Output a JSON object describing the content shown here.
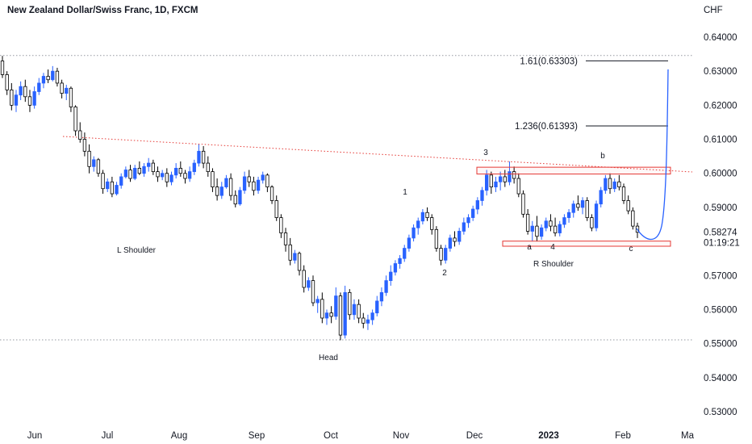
{
  "chart_data": {
    "type": "candlestick",
    "title": "New Zealand Dollar/Swiss Franc, 1D, FXCM",
    "currency": "CHF",
    "ylim": [
      0.525,
      0.6505
    ],
    "yticks": [
      "0.64000",
      "0.63000",
      "0.62000",
      "0.61000",
      "0.60000",
      "0.59000",
      "0.57000",
      "0.56000",
      "0.55000",
      "0.54000",
      "0.53000"
    ],
    "ytick_values": [
      0.64,
      0.63,
      0.62,
      0.61,
      0.6,
      0.59,
      0.57,
      0.56,
      0.55,
      0.54,
      0.53
    ],
    "current_price": "0.58274",
    "current_price_value": 0.58274,
    "countdown": "01:19:21",
    "xtick_labels": [
      "Jun",
      "Jul",
      "Aug",
      "Sep",
      "Oct",
      "Nov",
      "Dec",
      "2023",
      "Feb",
      "Ma"
    ],
    "colors": {
      "up": "#2962ff",
      "down": "#000000",
      "support": "#e53935",
      "trend": "#e53935",
      "projection": "#2962ff",
      "dotted": "#9598a1"
    },
    "candles_ohlc": [
      [
        0.633,
        0.6345,
        0.628,
        0.629
      ],
      [
        0.629,
        0.63,
        0.623,
        0.6245
      ],
      [
        0.6245,
        0.6265,
        0.6185,
        0.62
      ],
      [
        0.62,
        0.6245,
        0.618,
        0.623
      ],
      [
        0.623,
        0.627,
        0.6215,
        0.6255
      ],
      [
        0.6255,
        0.6275,
        0.621,
        0.6225
      ],
      [
        0.6225,
        0.6245,
        0.618,
        0.62
      ],
      [
        0.62,
        0.6255,
        0.619,
        0.624
      ],
      [
        0.624,
        0.628,
        0.623,
        0.6265
      ],
      [
        0.6265,
        0.6295,
        0.625,
        0.6285
      ],
      [
        0.6285,
        0.6305,
        0.6265,
        0.6275
      ],
      [
        0.6275,
        0.6315,
        0.627,
        0.63
      ],
      [
        0.63,
        0.631,
        0.6255,
        0.6265
      ],
      [
        0.6265,
        0.6275,
        0.622,
        0.6235
      ],
      [
        0.6235,
        0.626,
        0.6215,
        0.625
      ],
      [
        0.625,
        0.6255,
        0.618,
        0.6195
      ],
      [
        0.6195,
        0.62,
        0.611,
        0.6125
      ],
      [
        0.6125,
        0.615,
        0.609,
        0.61
      ],
      [
        0.61,
        0.612,
        0.605,
        0.6065
      ],
      [
        0.6065,
        0.6085,
        0.6,
        0.602
      ],
      [
        0.602,
        0.605,
        0.6005,
        0.604
      ],
      [
        0.604,
        0.6045,
        0.599,
        0.6
      ],
      [
        0.6,
        0.601,
        0.594,
        0.5955
      ],
      [
        0.5955,
        0.5985,
        0.5945,
        0.5975
      ],
      [
        0.5975,
        0.599,
        0.593,
        0.594
      ],
      [
        0.594,
        0.5975,
        0.5935,
        0.5965
      ],
      [
        0.5965,
        0.6,
        0.5955,
        0.599
      ],
      [
        0.599,
        0.602,
        0.5985,
        0.601
      ],
      [
        0.601,
        0.6025,
        0.5975,
        0.5985
      ],
      [
        0.5985,
        0.6025,
        0.598,
        0.6015
      ],
      [
        0.6015,
        0.6035,
        0.5995,
        0.6
      ],
      [
        0.6,
        0.603,
        0.599,
        0.602
      ],
      [
        0.602,
        0.6045,
        0.6005,
        0.603
      ],
      [
        0.603,
        0.604,
        0.5995,
        0.6005
      ],
      [
        0.6005,
        0.602,
        0.5975,
        0.599
      ],
      [
        0.599,
        0.601,
        0.598,
        0.6
      ],
      [
        0.6,
        0.6015,
        0.596,
        0.5975
      ],
      [
        0.5975,
        0.6005,
        0.5965,
        0.5995
      ],
      [
        0.5995,
        0.603,
        0.5985,
        0.6015
      ],
      [
        0.6015,
        0.6035,
        0.599,
        0.6
      ],
      [
        0.6,
        0.601,
        0.597,
        0.5985
      ],
      [
        0.5985,
        0.602,
        0.5975,
        0.6005
      ],
      [
        0.6005,
        0.604,
        0.5995,
        0.603
      ],
      [
        0.603,
        0.6085,
        0.602,
        0.6065
      ],
      [
        0.6065,
        0.608,
        0.6015,
        0.603
      ],
      [
        0.603,
        0.605,
        0.599,
        0.6005
      ],
      [
        0.6005,
        0.6015,
        0.5945,
        0.596
      ],
      [
        0.596,
        0.5985,
        0.592,
        0.5935
      ],
      [
        0.5935,
        0.5975,
        0.5925,
        0.596
      ],
      [
        0.596,
        0.5995,
        0.5955,
        0.5985
      ],
      [
        0.5985,
        0.6,
        0.592,
        0.5935
      ],
      [
        0.5935,
        0.595,
        0.59,
        0.591
      ],
      [
        0.591,
        0.596,
        0.5905,
        0.595
      ],
      [
        0.595,
        0.6005,
        0.594,
        0.599
      ],
      [
        0.599,
        0.601,
        0.596,
        0.5975
      ],
      [
        0.5975,
        0.599,
        0.5935,
        0.595
      ],
      [
        0.595,
        0.599,
        0.594,
        0.598
      ],
      [
        0.598,
        0.6005,
        0.597,
        0.5995
      ],
      [
        0.5995,
        0.6,
        0.5945,
        0.596
      ],
      [
        0.596,
        0.5965,
        0.591,
        0.592
      ],
      [
        0.592,
        0.5935,
        0.586,
        0.587
      ],
      [
        0.587,
        0.588,
        0.581,
        0.5825
      ],
      [
        0.5825,
        0.584,
        0.577,
        0.579
      ],
      [
        0.579,
        0.581,
        0.573,
        0.5745
      ],
      [
        0.5745,
        0.5775,
        0.5735,
        0.5765
      ],
      [
        0.5765,
        0.577,
        0.57,
        0.5715
      ],
      [
        0.5715,
        0.573,
        0.565,
        0.5665
      ],
      [
        0.5665,
        0.5695,
        0.5655,
        0.5685
      ],
      [
        0.5685,
        0.57,
        0.561,
        0.562
      ],
      [
        0.562,
        0.564,
        0.559,
        0.563
      ],
      [
        0.563,
        0.565,
        0.556,
        0.5575
      ],
      [
        0.5575,
        0.56,
        0.5555,
        0.559
      ],
      [
        0.559,
        0.561,
        0.556,
        0.558
      ],
      [
        0.558,
        0.5665,
        0.557,
        0.564
      ],
      [
        0.564,
        0.565,
        0.551,
        0.5525
      ],
      [
        0.5525,
        0.567,
        0.5515,
        0.565
      ],
      [
        0.565,
        0.566,
        0.557,
        0.5585
      ],
      [
        0.5585,
        0.563,
        0.557,
        0.5615
      ],
      [
        0.5615,
        0.563,
        0.556,
        0.5575
      ],
      [
        0.5575,
        0.559,
        0.5545,
        0.556
      ],
      [
        0.556,
        0.5585,
        0.554,
        0.557
      ],
      [
        0.557,
        0.56,
        0.5555,
        0.559
      ],
      [
        0.559,
        0.564,
        0.558,
        0.5625
      ],
      [
        0.5625,
        0.5665,
        0.561,
        0.565
      ],
      [
        0.565,
        0.57,
        0.564,
        0.5685
      ],
      [
        0.5685,
        0.573,
        0.567,
        0.571
      ],
      [
        0.571,
        0.5745,
        0.57,
        0.5735
      ],
      [
        0.5735,
        0.576,
        0.572,
        0.575
      ],
      [
        0.575,
        0.579,
        0.574,
        0.578
      ],
      [
        0.578,
        0.582,
        0.577,
        0.581
      ],
      [
        0.581,
        0.585,
        0.58,
        0.584
      ],
      [
        0.584,
        0.587,
        0.582,
        0.586
      ],
      [
        0.586,
        0.5895,
        0.585,
        0.5885
      ],
      [
        0.5885,
        0.59,
        0.586,
        0.587
      ],
      [
        0.587,
        0.588,
        0.582,
        0.5835
      ],
      [
        0.5835,
        0.5845,
        0.577,
        0.578
      ],
      [
        0.578,
        0.579,
        0.573,
        0.5745
      ],
      [
        0.5745,
        0.579,
        0.5735,
        0.578
      ],
      [
        0.578,
        0.582,
        0.577,
        0.581
      ],
      [
        0.581,
        0.583,
        0.5785,
        0.58
      ],
      [
        0.58,
        0.584,
        0.579,
        0.583
      ],
      [
        0.583,
        0.587,
        0.582,
        0.5855
      ],
      [
        0.5855,
        0.588,
        0.584,
        0.587
      ],
      [
        0.587,
        0.5905,
        0.586,
        0.5895
      ],
      [
        0.5895,
        0.593,
        0.588,
        0.592
      ],
      [
        0.592,
        0.596,
        0.5905,
        0.595
      ],
      [
        0.595,
        0.601,
        0.5935,
        0.5995
      ],
      [
        0.5995,
        0.6005,
        0.594,
        0.596
      ],
      [
        0.596,
        0.599,
        0.5945,
        0.5975
      ],
      [
        0.5975,
        0.6005,
        0.595,
        0.599
      ],
      [
        0.599,
        0.601,
        0.596,
        0.5975
      ],
      [
        0.5975,
        0.6035,
        0.5965,
        0.6005
      ],
      [
        0.6005,
        0.602,
        0.597,
        0.5985
      ],
      [
        0.5985,
        0.6,
        0.593,
        0.594
      ],
      [
        0.594,
        0.595,
        0.587,
        0.588
      ],
      [
        0.588,
        0.5895,
        0.582,
        0.583
      ],
      [
        0.583,
        0.586,
        0.58,
        0.5845
      ],
      [
        0.5845,
        0.5875,
        0.58,
        0.5815
      ],
      [
        0.5815,
        0.585,
        0.5805,
        0.584
      ],
      [
        0.584,
        0.587,
        0.583,
        0.586
      ],
      [
        0.586,
        0.588,
        0.583,
        0.5845
      ],
      [
        0.5845,
        0.587,
        0.5815,
        0.5825
      ],
      [
        0.5825,
        0.586,
        0.5815,
        0.585
      ],
      [
        0.585,
        0.588,
        0.584,
        0.587
      ],
      [
        0.587,
        0.5895,
        0.5855,
        0.5885
      ],
      [
        0.5885,
        0.592,
        0.587,
        0.591
      ],
      [
        0.591,
        0.5935,
        0.589,
        0.59
      ],
      [
        0.59,
        0.593,
        0.588,
        0.592
      ],
      [
        0.592,
        0.593,
        0.586,
        0.587
      ],
      [
        0.587,
        0.588,
        0.583,
        0.584
      ],
      [
        0.584,
        0.592,
        0.583,
        0.591
      ],
      [
        0.591,
        0.596,
        0.59,
        0.595
      ],
      [
        0.595,
        0.5995,
        0.594,
        0.5985
      ],
      [
        0.5985,
        0.6,
        0.594,
        0.5955
      ],
      [
        0.5955,
        0.5985,
        0.5945,
        0.5975
      ],
      [
        0.5975,
        0.5995,
        0.595,
        0.596
      ],
      [
        0.596,
        0.597,
        0.591,
        0.592
      ],
      [
        0.592,
        0.5935,
        0.588,
        0.589
      ],
      [
        0.589,
        0.59,
        0.5835,
        0.5845
      ],
      [
        0.5845,
        0.5855,
        0.581,
        0.5827
      ]
    ],
    "levels": [
      {
        "label": "1.61(0.63303)",
        "value": 0.63303
      },
      {
        "label": "1.236(0.61393)",
        "value": 0.61393
      }
    ],
    "dotted_levels": [
      0.6346,
      0.5511
    ],
    "annotations": [
      {
        "text": "L Shoulder",
        "anchor": "left-shoulder"
      },
      {
        "text": "Head",
        "anchor": "head"
      },
      {
        "text": "R Shoulder",
        "anchor": "right-shoulder"
      },
      {
        "text": "1",
        "anchor": "wave-1"
      },
      {
        "text": "2",
        "anchor": "wave-2"
      },
      {
        "text": "3",
        "anchor": "wave-3"
      },
      {
        "text": "4",
        "anchor": "wave-4"
      },
      {
        "text": "a",
        "anchor": "wave-a"
      },
      {
        "text": "b",
        "anchor": "wave-b"
      },
      {
        "text": "c",
        "anchor": "wave-c"
      }
    ]
  }
}
